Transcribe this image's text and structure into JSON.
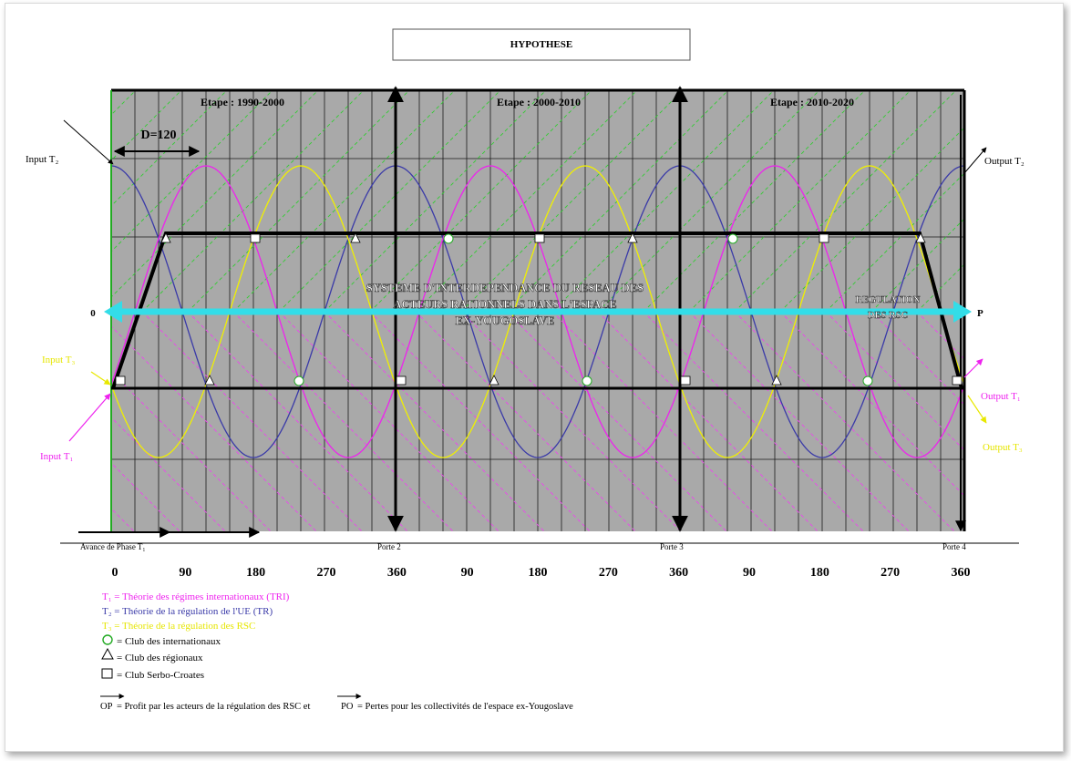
{
  "title": "HYPOTHESE",
  "stages": [
    "Etape : 1990-2000",
    "Etape : 2000-2010",
    "Etape : 2010-2020"
  ],
  "d_label": "D=120",
  "center_text": [
    "SYSTEME D'INTERDEPENDANCE DU RESEAU DES",
    "ACTEURS RATIONNELS DANS L'ESPACE",
    "EX-YOUGOSLAVE"
  ],
  "regulation_text": [
    "REGULATION",
    "DES RSC"
  ],
  "axis_left_label": "0",
  "axis_right_label": "P",
  "io_labels": {
    "input_t2": "Input T₂",
    "output_t2": "Output T₂",
    "input_t3": "Input T₃",
    "input_t1": "Input T₁",
    "output_t1": "Output T₁",
    "output_t3": "Output T₃"
  },
  "phase_labels": [
    "Avance de Phase T₁",
    "Porte 2",
    "Porte 3",
    "Porte 4"
  ],
  "x_ticks": [
    "0",
    "90",
    "180",
    "270",
    "360",
    "90",
    "180",
    "270",
    "360",
    "90",
    "180",
    "270",
    "360"
  ],
  "legend": {
    "t1": "T₁ = Théorie des régimes internationaux (TRI)",
    "t2": "T₂ = Théorie de la régulation de l'UE (TR)",
    "t3": "T₃ = Théorie de la régulation des RSC",
    "club_int": "= Club des internationaux",
    "club_reg": "= Club des régionaux",
    "club_serbo": "= Club Serbo-Croates",
    "footer_mid": "= Profit par les acteurs de la régulation des RSC et",
    "footer_end": "= Pertes pour les collectivités de l'espace ex-Yougoslave",
    "op": "OP",
    "po": "PO"
  },
  "colors": {
    "t1": "#ee22ee",
    "t2": "#3a3aa8",
    "t3": "#f0f000",
    "grid_bg": "#a9a9a9",
    "axis_arrow": "#33dde8",
    "diag_green": "#33cc33",
    "diag_magenta": "#ee44ee"
  }
}
